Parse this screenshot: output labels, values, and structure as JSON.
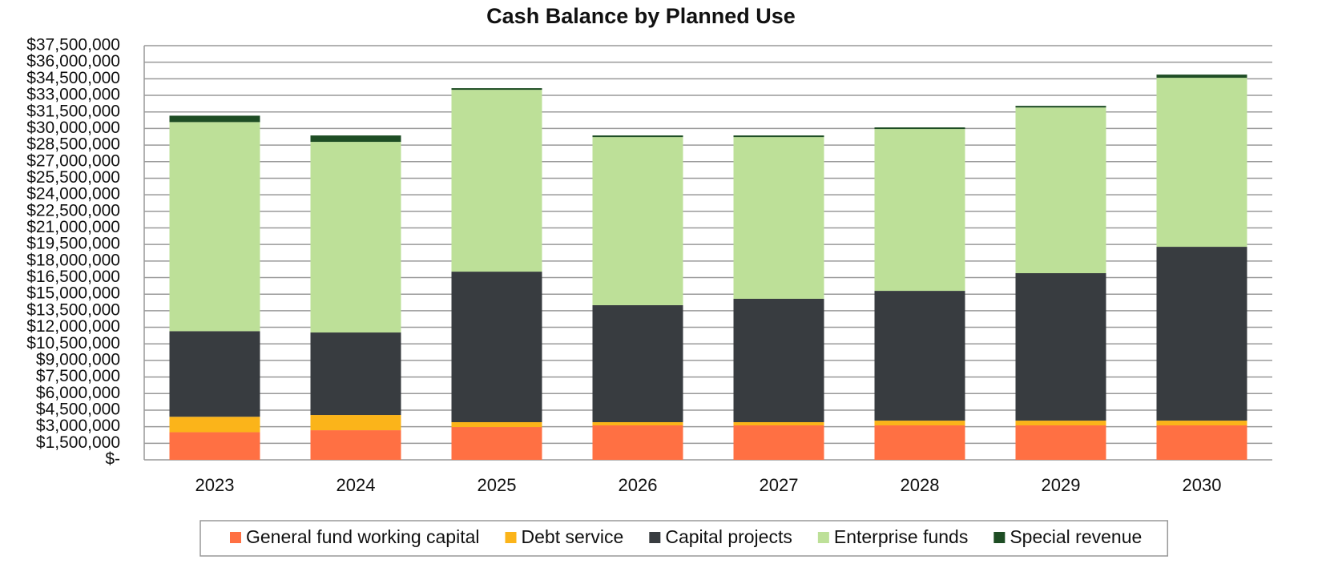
{
  "chart_data": {
    "type": "stacked_bar",
    "title": "Cash Balance by Planned Use",
    "categories": [
      "2023",
      "2024",
      "2025",
      "2026",
      "2027",
      "2028",
      "2029",
      "2030"
    ],
    "series": [
      {
        "name": "General fund working capital",
        "color": "#ff7043",
        "values": [
          2500000,
          2680000,
          2970000,
          3120000,
          3120000,
          3120000,
          3120000,
          3120000
        ]
      },
      {
        "name": "Debt service",
        "color": "#fbb41a",
        "values": [
          1400000,
          1380000,
          440000,
          290000,
          290000,
          430000,
          430000,
          430000
        ]
      },
      {
        "name": "Capital projects",
        "color": "#383c40",
        "values": [
          7750000,
          7470000,
          13630000,
          10590000,
          11170000,
          11750000,
          13350000,
          15740000
        ]
      },
      {
        "name": "Enterprise funds",
        "color": "#bde098",
        "values": [
          18930000,
          17260000,
          16460000,
          15220000,
          14640000,
          14650000,
          15000000,
          15300000
        ]
      },
      {
        "name": "Special revenue",
        "color": "#1e4d24",
        "values": [
          580000,
          580000,
          150000,
          150000,
          150000,
          150000,
          150000,
          290000
        ]
      }
    ],
    "ylim": [
      0,
      37500000
    ],
    "yticks": [
      {
        "value": 0,
        "label": "$-"
      },
      {
        "value": 1500000,
        "label": "$1,500,000"
      },
      {
        "value": 3000000,
        "label": "$3,000,000"
      },
      {
        "value": 4500000,
        "label": "$4,500,000"
      },
      {
        "value": 6000000,
        "label": "$6,000,000"
      },
      {
        "value": 7500000,
        "label": "$7,500,000"
      },
      {
        "value": 9000000,
        "label": "$9,000,000"
      },
      {
        "value": 10500000,
        "label": "$10,500,000"
      },
      {
        "value": 12000000,
        "label": "$12,000,000"
      },
      {
        "value": 13500000,
        "label": "$13,500,000"
      },
      {
        "value": 15000000,
        "label": "$15,000,000"
      },
      {
        "value": 16500000,
        "label": "$16,500,000"
      },
      {
        "value": 18000000,
        "label": "$18,000,000"
      },
      {
        "value": 19500000,
        "label": "$19,500,000"
      },
      {
        "value": 21000000,
        "label": "$21,000,000"
      },
      {
        "value": 22500000,
        "label": "$22,500,000"
      },
      {
        "value": 24000000,
        "label": "$24,000,000"
      },
      {
        "value": 25500000,
        "label": "$25,500,000"
      },
      {
        "value": 27000000,
        "label": "$27,000,000"
      },
      {
        "value": 28500000,
        "label": "$28,500,000"
      },
      {
        "value": 30000000,
        "label": "$30,000,000"
      },
      {
        "value": 31500000,
        "label": "$31,500,000"
      },
      {
        "value": 33000000,
        "label": "$33,000,000"
      },
      {
        "value": 34500000,
        "label": "$34,500,000"
      },
      {
        "value": 36000000,
        "label": "$36,000,000"
      },
      {
        "value": 37500000,
        "label": "$37,500,000"
      }
    ],
    "grid": true,
    "legend": "bottom"
  }
}
